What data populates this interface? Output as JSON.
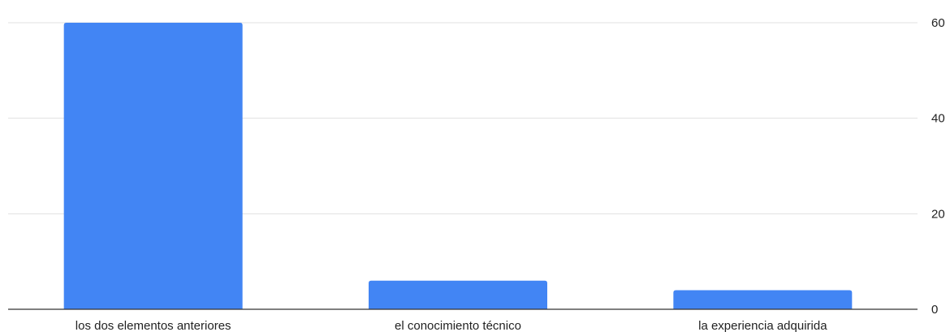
{
  "chart_data": {
    "type": "bar",
    "categories": [
      "los dos elementos anteriores",
      "el conocimiento técnico",
      "la experiencia adquirida"
    ],
    "values": [
      60,
      6,
      4
    ],
    "title": "",
    "xlabel": "",
    "ylabel": "",
    "ylim": [
      0,
      60
    ],
    "yticks": [
      0,
      20,
      40,
      60
    ],
    "y_axis_side": "right",
    "grid": true,
    "legend": "none",
    "bar_color": "#4285f4",
    "grid_color": "#e0e0e0",
    "axis_color": "#333333"
  }
}
